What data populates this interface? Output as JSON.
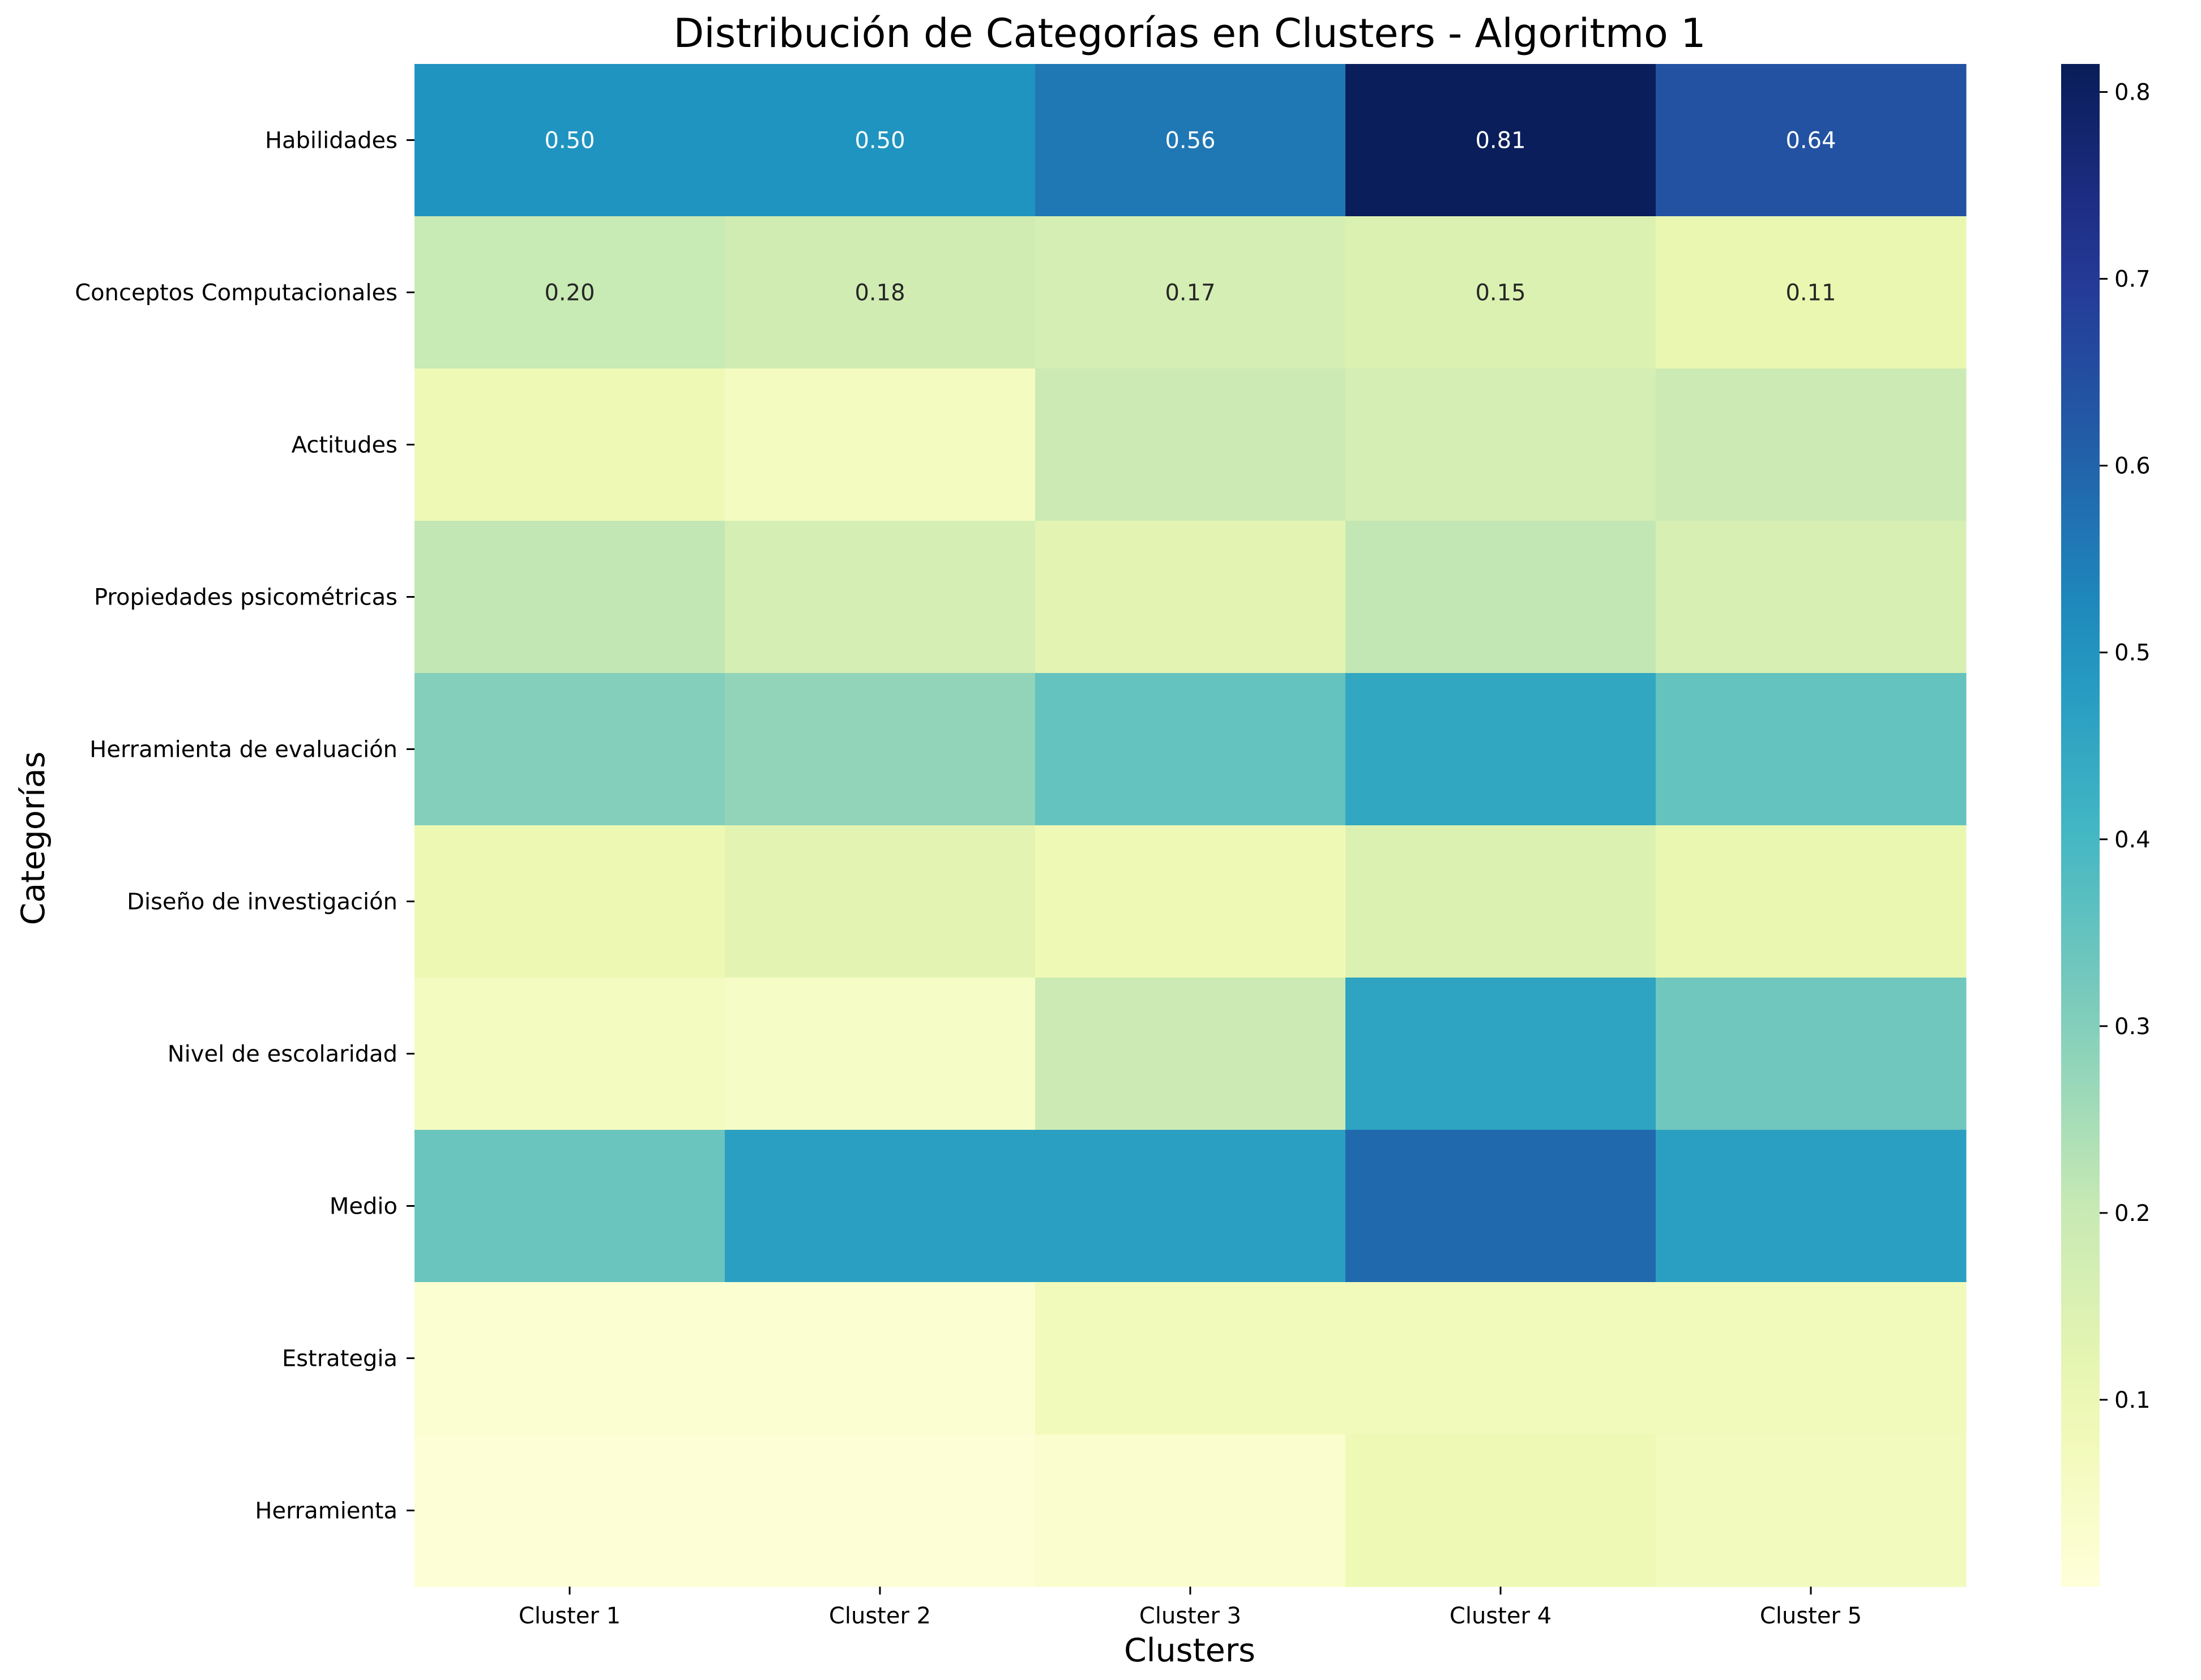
{
  "chart_data": {
    "type": "heatmap",
    "title": "Distribución de Categorías en Clusters - Algoritmo 1",
    "xlabel": "Clusters",
    "ylabel": "Categorías",
    "x_categories": [
      "Cluster 1",
      "Cluster 2",
      "Cluster 3",
      "Cluster 4",
      "Cluster 5"
    ],
    "y_categories": [
      "Habilidades",
      "Conceptos Computacionales",
      "Actitudes",
      "Propiedades psicométricas",
      "Herramienta de evaluación",
      "Diseño de investigación",
      "Nivel de escolaridad",
      "Medio",
      "Estrategia",
      "Herramienta"
    ],
    "values": [
      [
        0.5,
        0.5,
        0.56,
        0.81,
        0.64
      ],
      [
        0.2,
        0.18,
        0.17,
        0.15,
        0.11
      ],
      [
        0.09,
        0.06,
        0.19,
        0.17,
        0.19
      ],
      [
        0.21,
        0.17,
        0.13,
        0.21,
        0.16
      ],
      [
        0.3,
        0.28,
        0.35,
        0.45,
        0.35
      ],
      [
        0.1,
        0.13,
        0.09,
        0.15,
        0.11
      ],
      [
        0.06,
        0.05,
        0.19,
        0.46,
        0.33
      ],
      [
        0.34,
        0.47,
        0.47,
        0.59,
        0.47
      ],
      [
        0.02,
        0.02,
        0.08,
        0.08,
        0.08
      ],
      [
        0.01,
        0.01,
        0.03,
        0.09,
        0.07
      ]
    ],
    "annotations": [
      [
        "0.50",
        "0.50",
        "0.56",
        "0.81",
        "0.64"
      ],
      [
        "0.20",
        "0.18",
        "0.17",
        "0.15",
        "0.11"
      ],
      [
        "",
        "",
        "",
        "",
        ""
      ],
      [
        "",
        "",
        "",
        "",
        ""
      ],
      [
        "",
        "",
        "",
        "",
        ""
      ],
      [
        "",
        "",
        "",
        "",
        ""
      ],
      [
        "",
        "",
        "",
        "",
        ""
      ],
      [
        "",
        "",
        "",
        "",
        ""
      ],
      [
        "",
        "",
        "",
        "",
        ""
      ],
      [
        "",
        "",
        "",
        "",
        ""
      ]
    ],
    "colormap": "YlGnBu",
    "colorbar": {
      "range": [
        0.0,
        0.815
      ],
      "ticks": [
        0.1,
        0.2,
        0.3,
        0.4,
        0.5,
        0.6,
        0.7,
        0.8
      ],
      "tick_labels": [
        "0.1",
        "0.2",
        "0.3",
        "0.4",
        "0.5",
        "0.6",
        "0.7",
        "0.8"
      ]
    },
    "grid": false
  }
}
